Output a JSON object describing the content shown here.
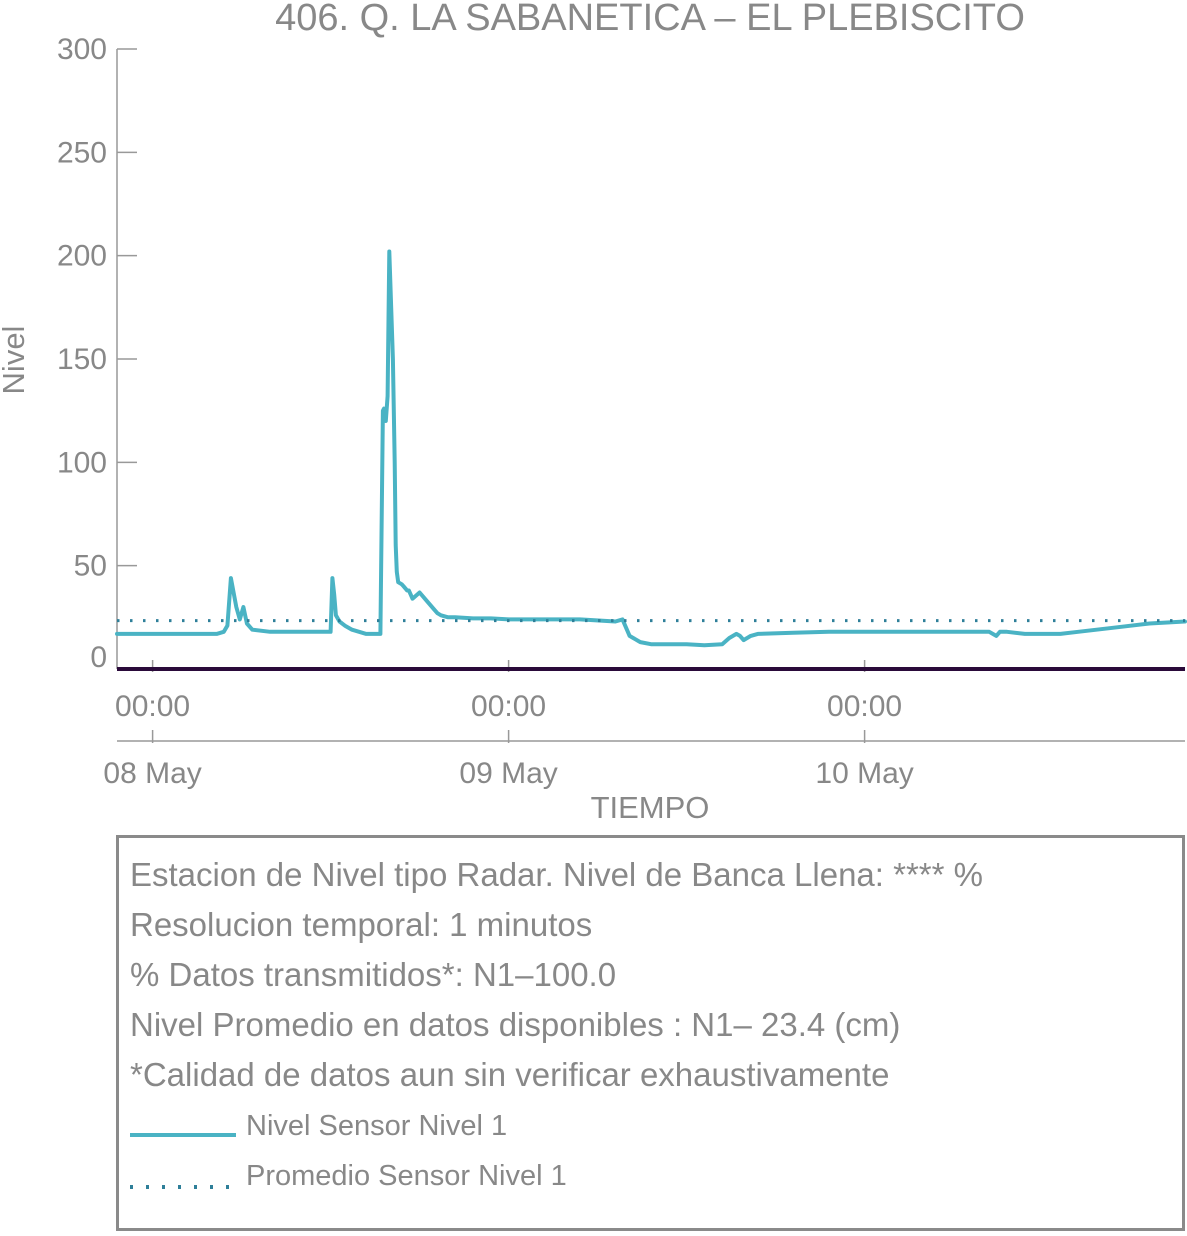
{
  "chart_data": {
    "type": "line",
    "title": "406. Q. LA SABANETICA – EL PLEBISCITO",
    "xlabel": "TIEMPO",
    "ylabel": "Nivel",
    "ylim": [
      0,
      300
    ],
    "yticks": [
      0,
      50,
      100,
      150,
      200,
      250,
      300
    ],
    "xlim": [
      -0.1,
      2.9
    ],
    "xticks": [
      {
        "x": 0,
        "time": "00:00",
        "date": "08 May"
      },
      {
        "x": 1,
        "time": "00:00",
        "date": "09 May"
      },
      {
        "x": 2,
        "time": "00:00",
        "date": "10 May"
      }
    ],
    "series": [
      {
        "name": "Nivel Sensor Nivel 1",
        "color": "#4ab3c4",
        "style": "solid",
        "x": [
          -0.1,
          0.0,
          0.1,
          0.18,
          0.2,
          0.21,
          0.22,
          0.235,
          0.245,
          0.255,
          0.265,
          0.28,
          0.33,
          0.4,
          0.45,
          0.49,
          0.5,
          0.505,
          0.51,
          0.515,
          0.525,
          0.54,
          0.56,
          0.58,
          0.6,
          0.62,
          0.64,
          0.647,
          0.65,
          0.655,
          0.66,
          0.665,
          0.675,
          0.68,
          0.683,
          0.686,
          0.69,
          0.7,
          0.705,
          0.71,
          0.715,
          0.72,
          0.73,
          0.75,
          0.77,
          0.79,
          0.8,
          0.81,
          0.82,
          0.83,
          0.85,
          0.9,
          0.95,
          1.0,
          1.05,
          1.1,
          1.2,
          1.3,
          1.32,
          1.34,
          1.35,
          1.37,
          1.4,
          1.45,
          1.5,
          1.55,
          1.6,
          1.62,
          1.64,
          1.65,
          1.66,
          1.68,
          1.7,
          1.8,
          1.9,
          2.0,
          2.1,
          2.2,
          2.3,
          2.35,
          2.37,
          2.38,
          2.4,
          2.45,
          2.5,
          2.55,
          2.6,
          2.7,
          2.8,
          2.9
        ],
        "values": [
          17,
          17,
          17,
          17,
          18,
          21,
          44,
          30,
          24,
          30,
          22,
          19,
          18,
          18,
          18,
          18,
          18,
          44,
          36,
          26,
          23,
          21,
          19,
          18,
          17,
          17,
          17,
          125,
          126,
          120,
          132,
          202,
          150,
          100,
          60,
          47,
          42,
          41,
          40,
          39,
          38,
          38,
          34,
          37,
          33,
          29,
          27,
          26,
          25.5,
          25,
          25,
          24.5,
          24.5,
          24,
          24,
          24,
          24,
          23,
          24,
          16,
          15,
          13,
          12,
          12,
          12,
          11.5,
          12,
          15,
          17,
          16,
          14,
          16,
          17,
          17.5,
          18,
          18,
          18,
          18,
          18,
          18,
          16,
          18,
          18,
          17,
          17,
          17,
          18,
          20,
          22,
          23
        ]
      },
      {
        "name": "Promedio Sensor Nivel 1",
        "color": "#2e7f99",
        "style": "dotted",
        "x": [
          -0.1,
          2.9
        ],
        "values": [
          23.4,
          23.4
        ]
      }
    ],
    "baseline": {
      "value": 0,
      "color": "#2a0a3a"
    },
    "legend_position": "bottom"
  },
  "info": {
    "lines": [
      "Estacion de Nivel tipo Radar. Nivel de Banca Llena: **** %",
      "Resolucion temporal: 1 minutos",
      "% Datos transmitidos*: N1–100.0",
      "Nivel Promedio en datos disponibles : N1– 23.4 (cm)",
      "*Calidad de datos aun sin verificar exhaustivamente"
    ],
    "legend": [
      {
        "label": "Nivel Sensor Nivel 1",
        "color": "#4ab3c4",
        "style": "solid"
      },
      {
        "label": "Promedio Sensor Nivel 1",
        "color": "#2e7f99",
        "style": "dotted"
      }
    ]
  }
}
